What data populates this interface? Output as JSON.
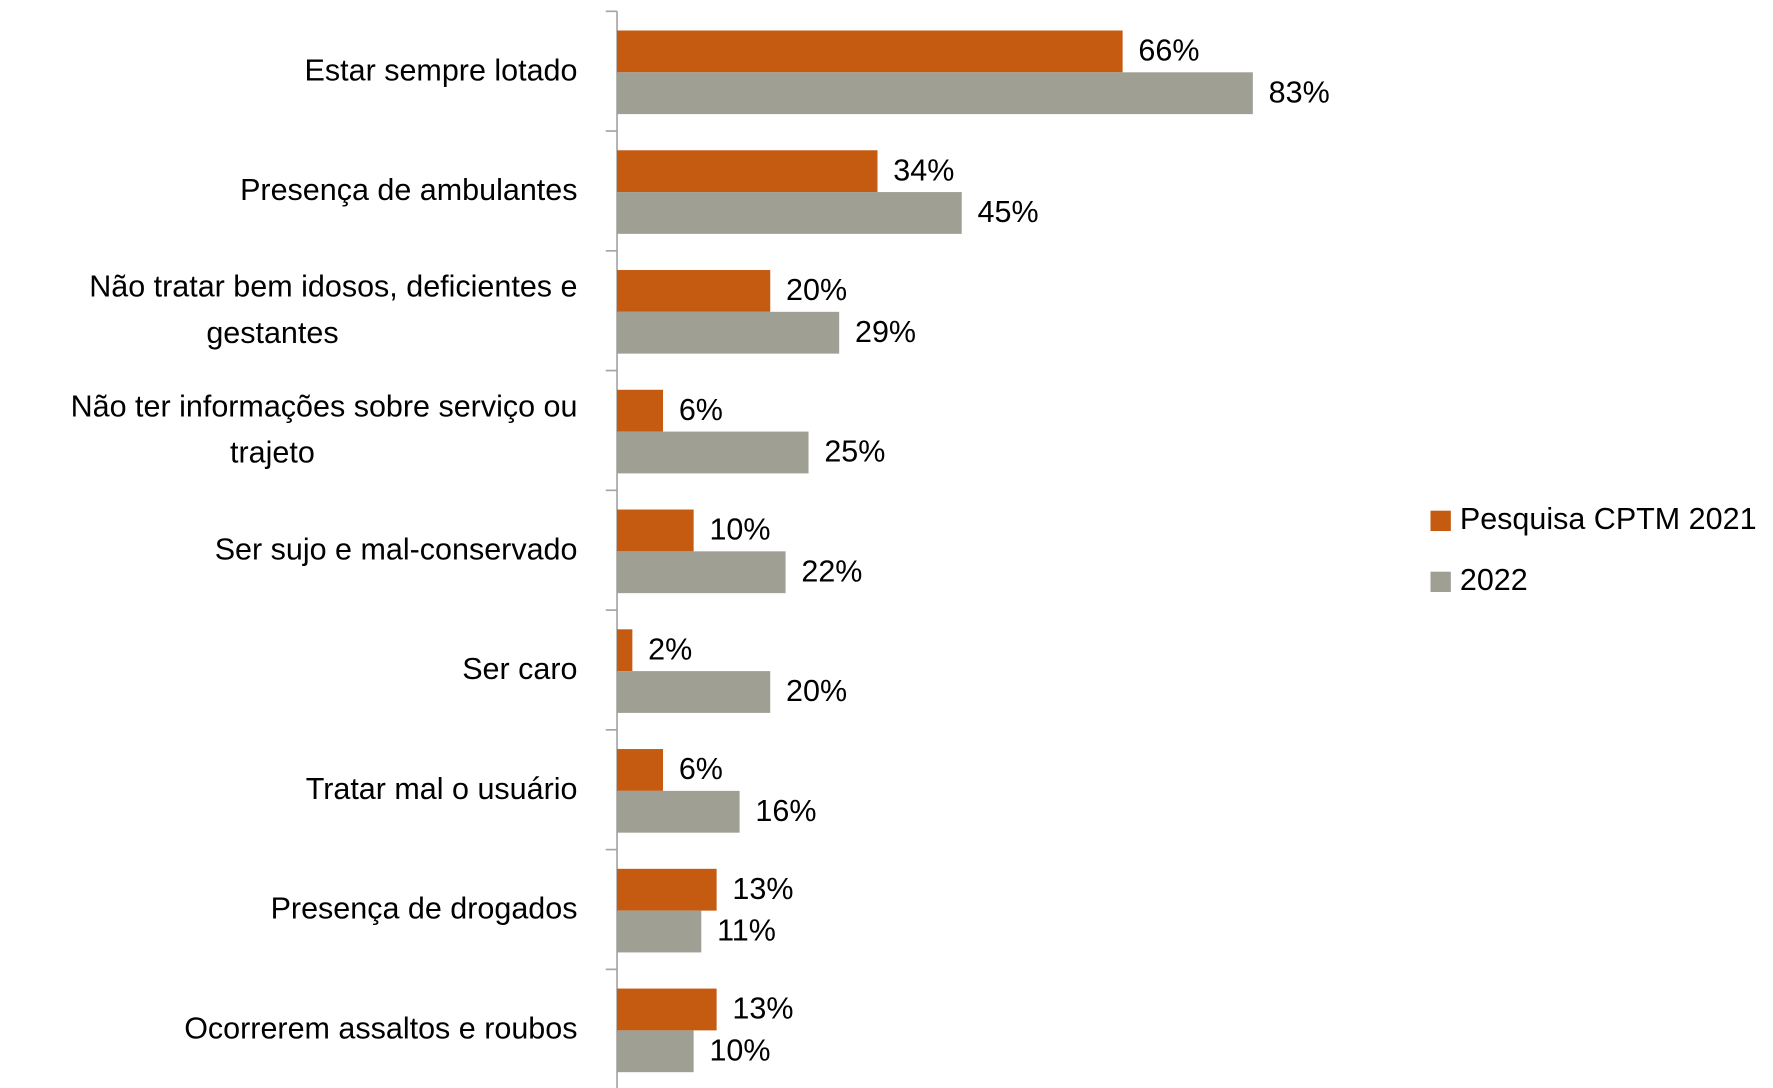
{
  "chart_data": {
    "type": "bar",
    "orientation": "horizontal",
    "categories": [
      "Estar sempre lotado",
      "Presença de ambulantes",
      "Não tratar bem idosos, deficientes e gestantes",
      "Não ter informações sobre serviço ou trajeto",
      "Ser sujo e mal-conservado",
      "Ser caro",
      "Tratar mal o usuário",
      "Presença de drogados",
      "Ocorrerem assaltos e roubos"
    ],
    "series": [
      {
        "name": "Pesquisa CPTM 2021",
        "color": "#c55a11",
        "values": [
          66,
          34,
          20,
          6,
          10,
          2,
          6,
          13,
          13
        ],
        "value_labels": [
          "66%",
          "34%",
          "20%",
          "6%",
          "10%",
          "2%",
          "6%",
          "13%",
          "13%"
        ]
      },
      {
        "name": "2022",
        "color": "#a09f93",
        "values": [
          83,
          45,
          29,
          25,
          22,
          20,
          16,
          11,
          10
        ],
        "value_labels": [
          "83%",
          "45%",
          "29%",
          "25%",
          "22%",
          "20%",
          "16%",
          "11%",
          "10%"
        ]
      }
    ],
    "xlim": [
      0,
      100
    ],
    "legend": "right"
  }
}
